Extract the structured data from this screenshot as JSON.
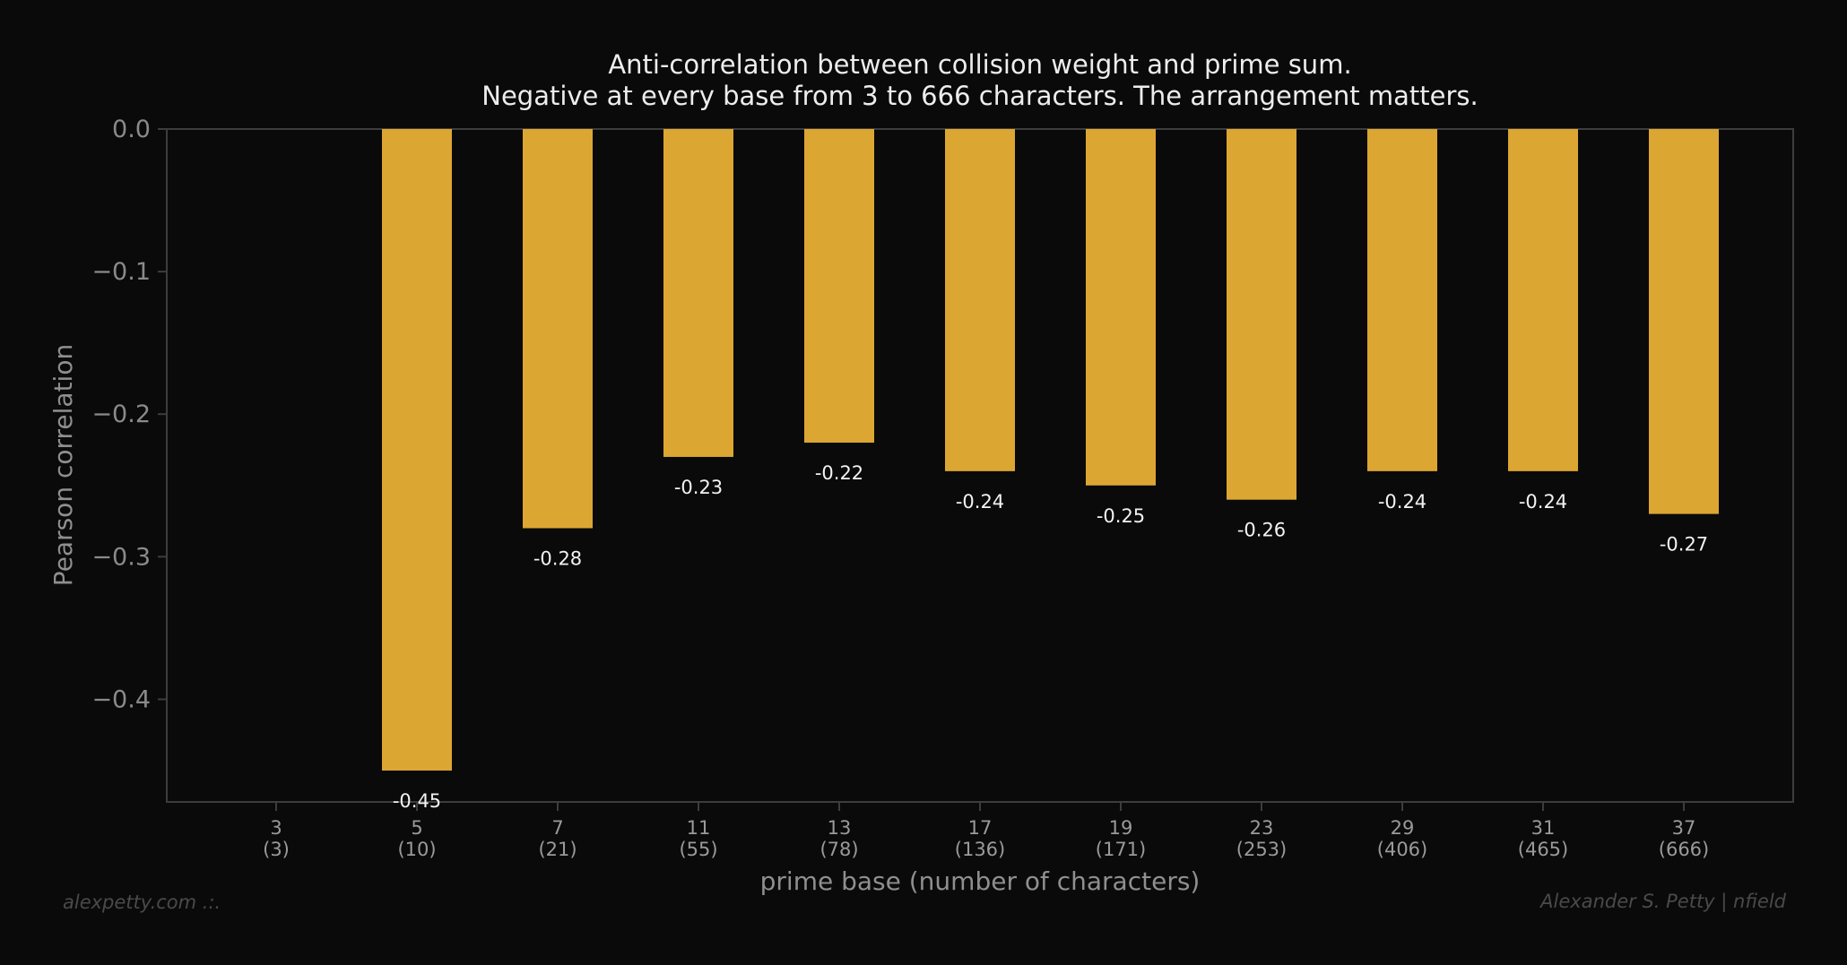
{
  "chart_data": {
    "type": "bar",
    "title": "Anti-correlation between collision weight and prime sum.",
    "subtitle": "Negative at every base from 3 to 666 characters. The arrangement matters.",
    "xlabel": "prime base (number of characters)",
    "ylabel": "Pearson correlation",
    "categories": [
      "3",
      "5",
      "7",
      "11",
      "13",
      "17",
      "19",
      "23",
      "29",
      "31",
      "37"
    ],
    "category_sublabels": [
      "(3)",
      "(10)",
      "(21)",
      "(55)",
      "(78)",
      "(136)",
      "(171)",
      "(253)",
      "(406)",
      "(465)",
      "(666)"
    ],
    "values": [
      null,
      -0.45,
      -0.28,
      -0.23,
      -0.22,
      -0.24,
      -0.25,
      -0.26,
      -0.24,
      -0.24,
      -0.27
    ],
    "value_labels": [
      "",
      "-0.45",
      "-0.28",
      "-0.23",
      "-0.22",
      "-0.24",
      "-0.25",
      "-0.26",
      "-0.24",
      "-0.24",
      "-0.27"
    ],
    "yticks": [
      0.0,
      -0.1,
      -0.2,
      -0.3,
      -0.4
    ],
    "ytick_labels": [
      "0.0",
      "−0.1",
      "−0.2",
      "−0.3",
      "−0.4"
    ],
    "ylim": [
      -0.472,
      0.0
    ],
    "colors": {
      "bar": "#dca633",
      "background": "#0a0a0a",
      "axis": "#3d3d3d"
    }
  },
  "footer": {
    "left": "alexpetty.com  .:.",
    "right": "Alexander S. Petty  |  nfield"
  }
}
